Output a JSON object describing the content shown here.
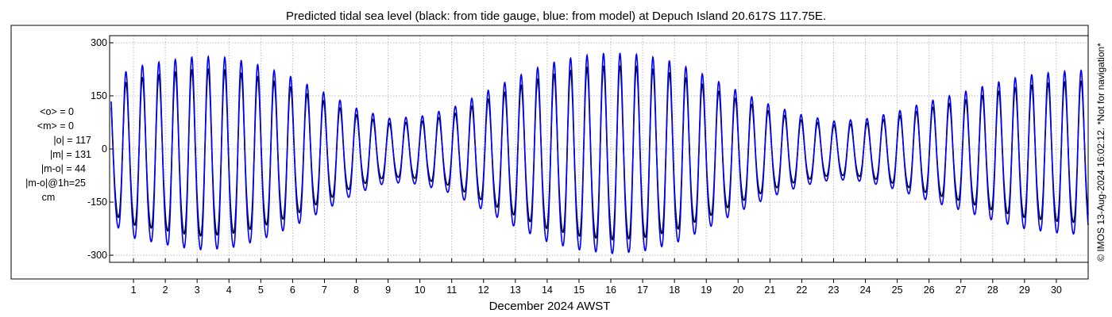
{
  "chart_data": {
    "type": "line",
    "title": "Predicted tidal sea level (black: from tide gauge, blue: from model) at Depuch Island 20.617S 117.75E.",
    "xlabel": "December 2024 AWST",
    "ylabel": "",
    "xlim": [
      0.3,
      31.0
    ],
    "ylim": [
      -320,
      320
    ],
    "x_ticks": [
      1,
      2,
      3,
      4,
      5,
      6,
      7,
      8,
      9,
      10,
      11,
      12,
      13,
      14,
      15,
      16,
      17,
      18,
      19,
      20,
      21,
      22,
      23,
      24,
      25,
      26,
      27,
      28,
      29,
      30
    ],
    "x_tick_labels": [
      "1",
      "2",
      "3",
      "4",
      "5",
      "6",
      "7",
      "8",
      "9",
      "10",
      "11",
      "12",
      "13",
      "14",
      "15",
      "16",
      "17",
      "18",
      "19",
      "20",
      "21",
      "22",
      "23",
      "24",
      "25",
      "26",
      "27",
      "28",
      "29",
      "30"
    ],
    "y_ticks": [
      300,
      150,
      0,
      -150,
      -300
    ],
    "y_tick_labels": [
      "300",
      "150",
      "0",
      "-150",
      "-300"
    ],
    "grid": true,
    "series": [
      {
        "name": "tide gauge",
        "color": "#000000",
        "envelope_days": [
          0.3,
          1,
          2,
          3,
          4,
          5,
          6,
          7,
          8,
          9,
          10,
          11,
          12,
          13,
          14,
          15,
          16,
          17,
          18,
          19,
          20,
          21,
          22,
          23,
          24,
          25,
          26,
          27,
          28,
          29,
          30,
          31
        ],
        "envelope_amplitude_cm": [
          175,
          205,
          220,
          235,
          230,
          210,
          180,
          140,
          100,
          75,
          80,
          100,
          140,
          180,
          215,
          235,
          245,
          240,
          220,
          185,
          145,
          110,
          85,
          70,
          75,
          95,
          120,
          140,
          165,
          185,
          195,
          200
        ]
      },
      {
        "name": "model",
        "color": "#0000ff",
        "envelope_days": [
          0.3,
          1,
          2,
          3,
          4,
          5,
          6,
          7,
          8,
          9,
          10,
          11,
          12,
          13,
          14,
          15,
          16,
          17,
          18,
          19,
          20,
          21,
          22,
          23,
          24,
          25,
          26,
          27,
          28,
          29,
          30,
          31
        ],
        "envelope_amplitude_cm": [
          200,
          240,
          258,
          272,
          268,
          245,
          210,
          165,
          120,
          90,
          95,
          120,
          165,
          210,
          250,
          272,
          282,
          276,
          255,
          215,
          170,
          130,
          100,
          82,
          88,
          110,
          140,
          165,
          192,
          215,
          226,
          232
        ]
      }
    ],
    "colors": {
      "gauge": "#000000",
      "model": "#0000ff",
      "grid": "#bdbdbd",
      "axes": "#000000"
    }
  },
  "stats": {
    "mean_obs": "<o> = 0",
    "mean_model": "<m> = 0",
    "abs_obs": "|o| = 117",
    "abs_model": "|m| = 131",
    "abs_diff": "|m-o| = 44",
    "abs_diff_1h": "|m-o|@1h=25",
    "unit": "cm"
  },
  "side_note": "© IMOS 13-Aug-2024 16:02:12. *Not for navigation*"
}
